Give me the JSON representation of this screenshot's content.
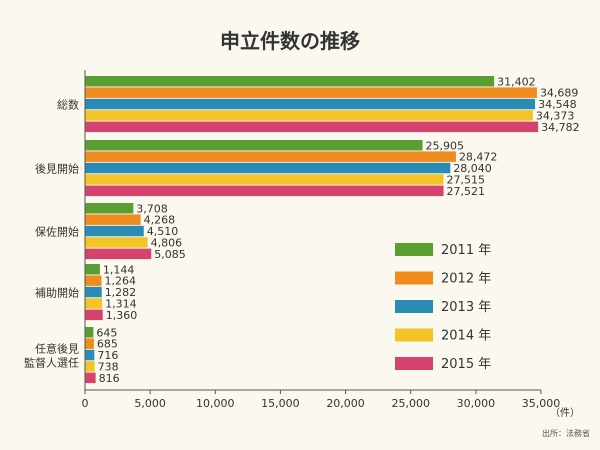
{
  "chart_data": {
    "type": "bar",
    "orientation": "horizontal",
    "title": "申立件数の推移",
    "categories": [
      [
        "総数"
      ],
      [
        "後見開始"
      ],
      [
        "保佐開始"
      ],
      [
        "補助開始"
      ],
      [
        "任意後見",
        "監督人選任"
      ]
    ],
    "series": [
      {
        "name": "2011 年",
        "color": "#5a9e32",
        "values": [
          31402,
          25905,
          3708,
          1144,
          645
        ]
      },
      {
        "name": "2012 年",
        "color": "#ef8c1e",
        "values": [
          34689,
          28472,
          4268,
          1264,
          685
        ]
      },
      {
        "name": "2013 年",
        "color": "#2a8cb5",
        "values": [
          34548,
          28040,
          4510,
          1282,
          716
        ]
      },
      {
        "name": "2014 年",
        "color": "#f2c427",
        "values": [
          34373,
          27515,
          4806,
          1314,
          738
        ]
      },
      {
        "name": "2015 年",
        "color": "#d3436e",
        "values": [
          34782,
          27521,
          5085,
          1360,
          816
        ]
      }
    ],
    "x_ticks": [
      "0",
      "5,000",
      "10,000",
      "15,000",
      "20,000",
      "25,000",
      "30,000",
      "35,000"
    ],
    "xlim": [
      0,
      35000
    ],
    "unit": "（件）",
    "legend_position": "right",
    "grid": false
  },
  "source": "出所：法務省"
}
